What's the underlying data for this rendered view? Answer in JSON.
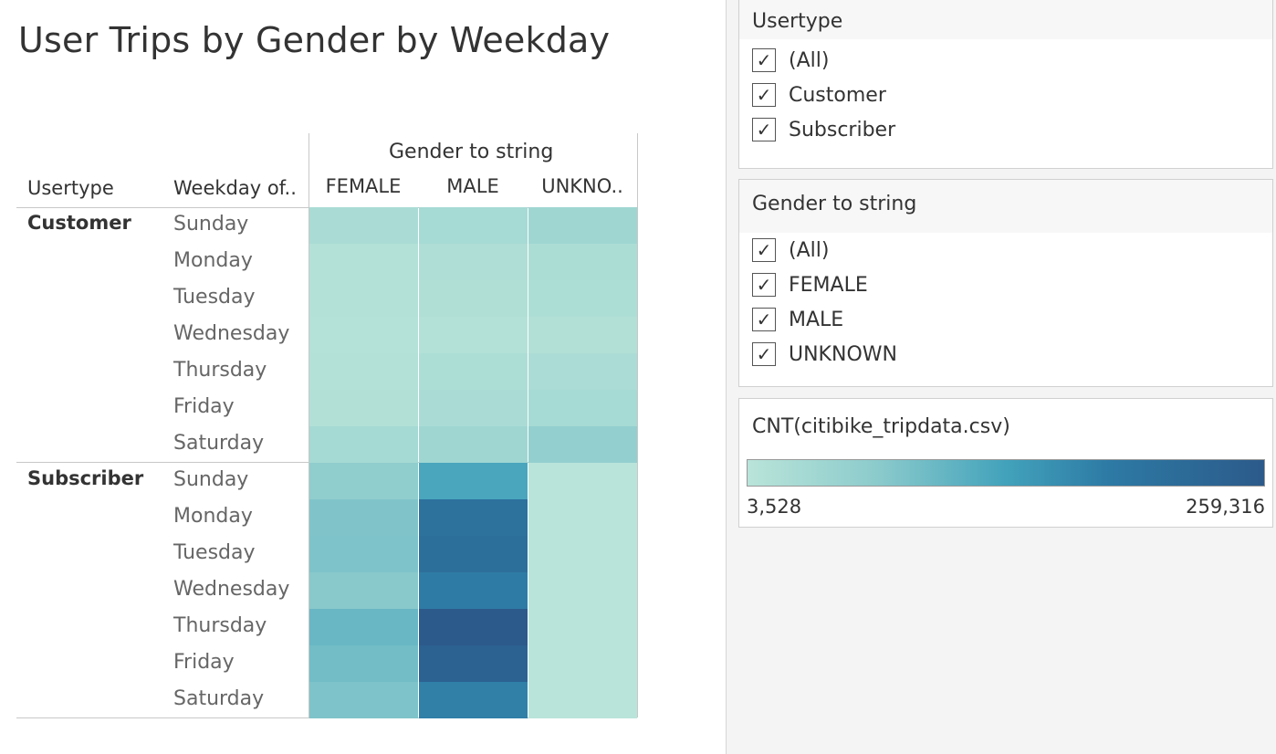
{
  "title": "User Trips by Gender by Weekday",
  "column_group_header": "Gender to string",
  "row_headers": {
    "usertype": "Usertype",
    "weekday": "Weekday of.."
  },
  "columns": [
    "FEMALE",
    "MALE",
    "UNKNO.."
  ],
  "filters": {
    "usertype": {
      "title": "Usertype",
      "items": [
        "(All)",
        "Customer",
        "Subscriber"
      ],
      "checked": [
        true,
        true,
        true
      ]
    },
    "gender": {
      "title": "Gender to string",
      "items": [
        "(All)",
        "FEMALE",
        "MALE",
        "UNKNOWN"
      ],
      "checked": [
        true,
        true,
        true,
        true
      ]
    }
  },
  "legend": {
    "title": "CNT(citibike_tripdata.csv)",
    "min_label": "3,528",
    "max_label": "259,316",
    "min": 3528,
    "max": 259316,
    "check_glyph": "✓"
  },
  "colors": {
    "low": "#b9e4d9",
    "high": "#2c5a8a"
  },
  "chart_data": {
    "type": "heatmap",
    "title": "User Trips by Gender by Weekday",
    "x_label": "Gender to string",
    "x_categories": [
      "FEMALE",
      "MALE",
      "UNKNO.."
    ],
    "row_dimensions": [
      "Usertype",
      "Weekday of.."
    ],
    "groups": [
      {
        "name": "Customer",
        "rows": [
          {
            "label": "Sunday",
            "values": [
              25000,
              30000,
              40000
            ]
          },
          {
            "label": "Monday",
            "values": [
              12000,
              18000,
              22000
            ]
          },
          {
            "label": "Tuesday",
            "values": [
              11000,
              16000,
              20000
            ]
          },
          {
            "label": "Wednesday",
            "values": [
              10000,
              12000,
              14000
            ]
          },
          {
            "label": "Thursday",
            "values": [
              12000,
              20000,
              24000
            ]
          },
          {
            "label": "Friday",
            "values": [
              14000,
              25000,
              30000
            ]
          },
          {
            "label": "Saturday",
            "values": [
              32000,
              40000,
              58000
            ]
          }
        ]
      },
      {
        "name": "Subscriber",
        "rows": [
          {
            "label": "Sunday",
            "values": [
              62000,
              125000,
              4000
            ]
          },
          {
            "label": "Monday",
            "values": [
              78000,
              205000,
              3528
            ]
          },
          {
            "label": "Tuesday",
            "values": [
              80000,
              210000,
              3600
            ]
          },
          {
            "label": "Wednesday",
            "values": [
              70000,
              180000,
              3700
            ]
          },
          {
            "label": "Thursday",
            "values": [
              98000,
              259316,
              3700
            ]
          },
          {
            "label": "Friday",
            "values": [
              90000,
              240000,
              3700
            ]
          },
          {
            "label": "Saturday",
            "values": [
              80000,
              175000,
              3600
            ]
          }
        ]
      }
    ],
    "color_scale": {
      "min": 3528,
      "max": 259316,
      "label": "CNT(citibike_tripdata.csv)"
    }
  }
}
